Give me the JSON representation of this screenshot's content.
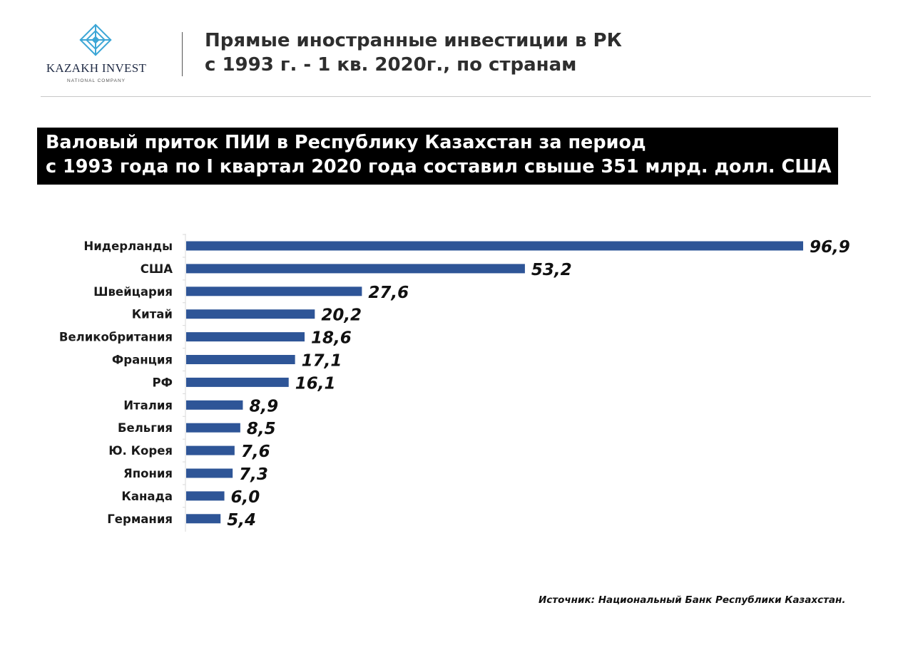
{
  "logo": {
    "name": "KAZAKH INVEST",
    "subtitle": "NATIONAL COMPANY"
  },
  "header": {
    "title_line1": "Прямые иностранные инвестиции в РК",
    "title_line2": "с 1993 г. - 1 кв. 2020г., по странам"
  },
  "banner": {
    "line1": "Валовый приток ПИИ в Республику Казахстан за период",
    "line2": "с 1993 года по I квартал 2020 года составил свыше 351 млрд. долл. США"
  },
  "colors": {
    "bar": "#2e5597",
    "banner_bg": "#000000",
    "logo_accent": "#3ca6d6"
  },
  "chart_data": {
    "type": "bar",
    "orientation": "horizontal",
    "categories": [
      "Нидерланды",
      "США",
      "Швейцария",
      "Китай",
      "Великобритания",
      "Франция",
      "РФ",
      "Италия",
      "Бельгия",
      "Ю. Корея",
      "Япония",
      "Канада",
      "Германия"
    ],
    "values": [
      96.9,
      53.2,
      27.6,
      20.2,
      18.6,
      17.1,
      16.1,
      8.9,
      8.5,
      7.6,
      7.3,
      6.0,
      5.4
    ],
    "value_labels": [
      "96,9",
      "53,2",
      "27,6",
      "20,2",
      "18,6",
      "17,1",
      "16,1",
      "8,9",
      "8,5",
      "7,6",
      "7,3",
      "6,0",
      "5,4"
    ],
    "xlim": [
      0,
      96.9
    ],
    "grid": false,
    "legend": "none"
  },
  "footer": {
    "source": "Источник: Национальный Банк Республики Казахстан."
  }
}
